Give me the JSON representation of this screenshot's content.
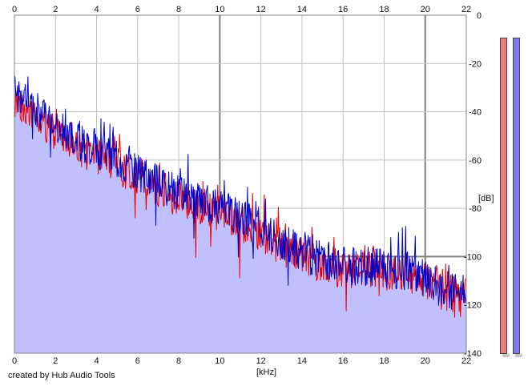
{
  "chart_data": {
    "type": "area",
    "xlabel": "[kHz]",
    "ylabel": "[dB]",
    "xlim": [
      0,
      22
    ],
    "ylim": [
      -140,
      0
    ],
    "x_ticks": [
      "0",
      "2",
      "4",
      "6",
      "8",
      "10",
      "12",
      "14",
      "16",
      "18",
      "20",
      "22"
    ],
    "y_ticks": [
      "0",
      "-20",
      "-40",
      "-60",
      "-80",
      "-100",
      "-120",
      "-140"
    ],
    "grid": true,
    "series": [
      {
        "color": "#0000cc",
        "fill": "#c0c0ff",
        "x": [
          0.0,
          0.3,
          0.6,
          0.9,
          1.2,
          1.5,
          2.0,
          2.5,
          3.0,
          3.5,
          4.0,
          4.5,
          5.0,
          5.5,
          6.0,
          6.5,
          7.0,
          7.5,
          8.0,
          8.5,
          9.0,
          9.5,
          10.0,
          10.5,
          11.0,
          11.5,
          12.0,
          12.5,
          13.0,
          13.5,
          14.0,
          14.5,
          15.0,
          15.5,
          16.0,
          16.5,
          17.0,
          17.5,
          18.0,
          18.5,
          19.0,
          19.5,
          20.0,
          20.5,
          21.0,
          21.5,
          22.0
        ],
        "y": [
          -32,
          -33,
          -35,
          -38,
          -40,
          -42,
          -46,
          -48,
          -52,
          -54,
          -56,
          -58,
          -60,
          -63,
          -65,
          -67,
          -70,
          -72,
          -74,
          -76,
          -77,
          -78,
          -80,
          -82,
          -84,
          -86,
          -88,
          -91,
          -94,
          -96,
          -98,
          -100,
          -102,
          -103,
          -104,
          -104,
          -105,
          -104,
          -105,
          -106,
          -106,
          -107,
          -109,
          -112,
          -114,
          -115,
          -113
        ]
      },
      {
        "color": "#ee0000",
        "x": [
          0.0,
          0.3,
          0.6,
          0.9,
          1.2,
          1.5,
          2.0,
          2.5,
          3.0,
          3.5,
          4.0,
          4.5,
          5.0,
          5.5,
          6.0,
          6.5,
          7.0,
          7.5,
          8.0,
          8.5,
          9.0,
          9.5,
          10.0,
          10.5,
          11.0,
          11.5,
          12.0,
          12.5,
          13.0,
          13.5,
          14.0,
          14.5,
          15.0,
          15.5,
          16.0,
          16.5,
          17.0,
          17.5,
          18.0,
          18.5,
          19.0,
          19.5,
          20.0,
          20.5,
          21.0,
          21.5,
          22.0
        ],
        "y": [
          -35,
          -36,
          -38,
          -41,
          -43,
          -45,
          -49,
          -50,
          -54,
          -56,
          -58,
          -60,
          -62,
          -65,
          -67,
          -69,
          -72,
          -74,
          -76,
          -78,
          -79,
          -80,
          -82,
          -84,
          -86,
          -88,
          -90,
          -93,
          -96,
          -98,
          -100,
          -102,
          -104,
          -104,
          -106,
          -105,
          -106,
          -105,
          -106,
          -107,
          -107,
          -108,
          -110,
          -113,
          -115,
          -116,
          -114
        ]
      }
    ]
  },
  "meters": [
    {
      "channel": "left",
      "color": "#ef7b7b"
    },
    {
      "channel": "right",
      "color": "#7b7bef"
    }
  ],
  "footer": {
    "credit": "created by Hub Audio Tools"
  }
}
